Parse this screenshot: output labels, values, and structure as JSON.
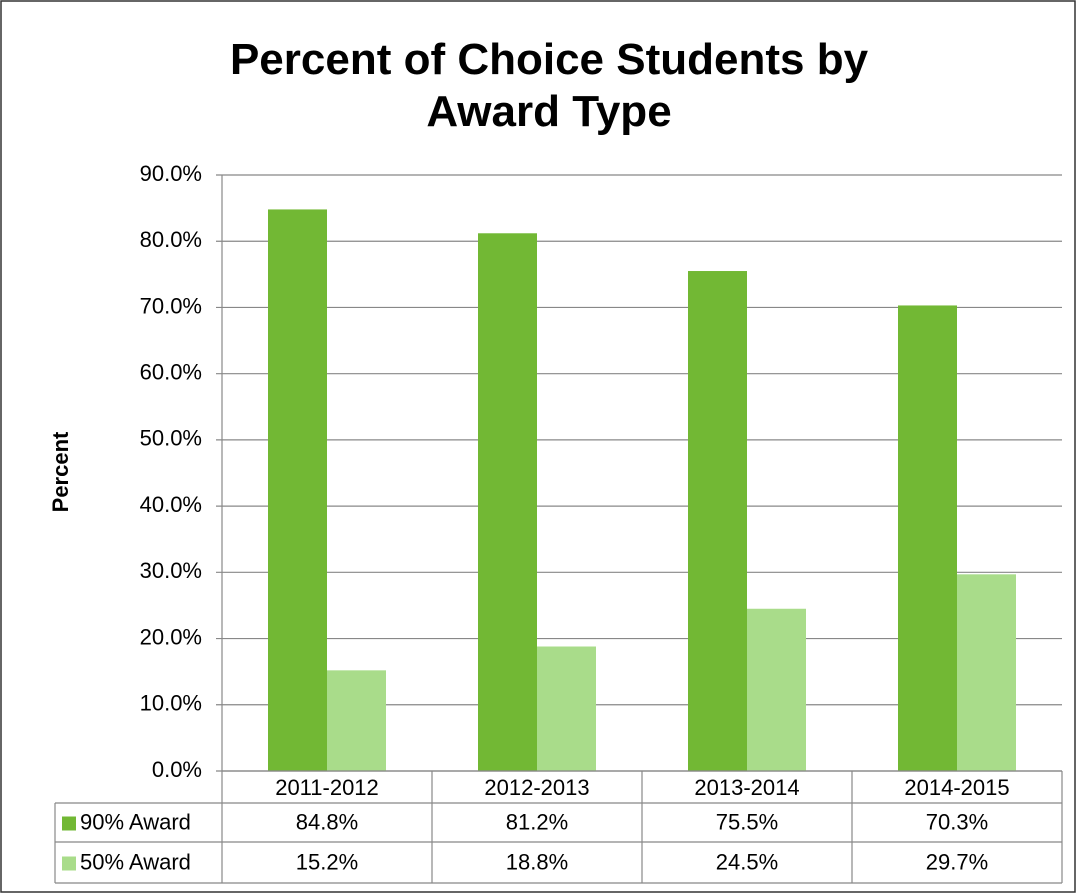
{
  "chart_data": {
    "type": "bar",
    "title": "Percent of Choice Students by Award Type",
    "y_label": "Percent",
    "categories": [
      "2011-2012",
      "2012-2013",
      "2013-2014",
      "2014-2015"
    ],
    "series": [
      {
        "name": "90% Award",
        "color": "#72b834",
        "values": [
          84.8,
          81.2,
          75.5,
          70.3
        ],
        "value_labels": [
          "84.8%",
          "81.2%",
          "75.5%",
          "70.3%"
        ]
      },
      {
        "name": "50% Award",
        "color": "#a9dc8a",
        "values": [
          15.2,
          18.8,
          24.5,
          29.7
        ],
        "value_labels": [
          "15.2%",
          "18.8%",
          "24.5%",
          "29.7%"
        ]
      }
    ],
    "ylim": [
      0,
      90
    ],
    "yticks": [
      {
        "value": 0,
        "label": "0.0%"
      },
      {
        "value": 10,
        "label": "10.0%"
      },
      {
        "value": 20,
        "label": "20.0%"
      },
      {
        "value": 30,
        "label": "30.0%"
      },
      {
        "value": 40,
        "label": "40.0%"
      },
      {
        "value": 50,
        "label": "50.0%"
      },
      {
        "value": 60,
        "label": "60.0%"
      },
      {
        "value": 70,
        "label": "70.0%"
      },
      {
        "value": 80,
        "label": "80.0%"
      },
      {
        "value": 90,
        "label": "90.0%"
      }
    ],
    "grid": true,
    "legend": "table"
  }
}
